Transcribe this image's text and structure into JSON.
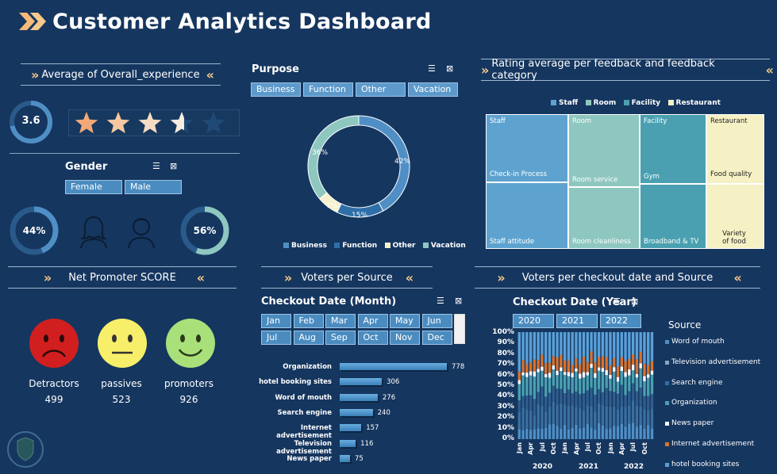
{
  "header": {
    "title": "Customer Analytics Dashboard"
  },
  "rating": {
    "banner": "Average of Overall_experience",
    "value": "3.6",
    "stars_filled_fraction": 0.72
  },
  "gender": {
    "title": "Gender",
    "buttons": [
      "Female",
      "Male"
    ],
    "female_pct": "44%",
    "male_pct": "56%"
  },
  "nps": {
    "banner": "Net Promoter SCORE",
    "faces": [
      {
        "label": "Detractors",
        "value": "499",
        "color": "#d11f1f"
      },
      {
        "label": "passives",
        "value": "523",
        "color": "#f7ef6a"
      },
      {
        "label": "promoters",
        "value": "926",
        "color": "#a9e07a"
      }
    ]
  },
  "purpose": {
    "title": "Purpose",
    "buttons": [
      "Business",
      "Function",
      "Other",
      "Vacation"
    ],
    "labels": [
      "42%",
      "15%",
      "7%",
      "36%"
    ],
    "legend": [
      "Business",
      "Function",
      "Other",
      "Vacation"
    ]
  },
  "voters_source": {
    "banner": "Voters per Source",
    "slicer_title": "Checkout Date (Month)",
    "months": [
      "Jan",
      "Feb",
      "Mar",
      "Apr",
      "May",
      "Jun",
      "Jul",
      "Aug",
      "Sep",
      "Oct",
      "Nov",
      "Dec"
    ]
  },
  "feedback": {
    "banner": "Rating average per feedback and feedback category",
    "legend": [
      "Staff",
      "Room",
      "Facility",
      "Restaurant"
    ],
    "cells": {
      "staff": "Staff",
      "checkin": "Check-in Process",
      "staff_attitude": "Staff attitude",
      "room": "Room",
      "room_service": "Room service",
      "room_clean": "Room cleanliness",
      "facility": "Facility",
      "gym": "Gym",
      "broadband": "Broadband & TV",
      "restaurant": "Restaurant",
      "food_quality": "Food quality",
      "variety": "Variety of food"
    }
  },
  "checkout": {
    "banner": "Voters per checkout date and Source",
    "slicer_title": "Checkout Date (Year)",
    "years": [
      "2020",
      "2021",
      "2022"
    ],
    "y_ticks": [
      "100%",
      "90%",
      "80%",
      "70%",
      "60%",
      "50%",
      "40%",
      "30%",
      "20%",
      "10%",
      "0%"
    ],
    "x_months": [
      "Jan",
      "Apr",
      "Jul",
      "Oct"
    ],
    "source_title": "Source",
    "sources": [
      "Word of mouth",
      "Television advertisement",
      "Search engine",
      "Organization",
      "News paper",
      "Internet advertisement",
      "hotel booking sites"
    ]
  },
  "chart_data": [
    {
      "type": "pie",
      "categories": [
        "Business",
        "Function",
        "Other",
        "Vacation"
      ],
      "values": [
        42,
        15,
        7,
        36
      ],
      "title": "Purpose"
    },
    {
      "type": "bar",
      "categories": [
        "Organization",
        "hotel booking sites",
        "Word of mouth",
        "Search engine",
        "Internet advertisement",
        "Television advertisement",
        "News paper"
      ],
      "values": [
        778,
        306,
        276,
        240,
        157,
        116,
        75
      ],
      "title": "Voters per Source"
    },
    {
      "type": "bar",
      "title": "Voters per checkout date and Source",
      "ylim": [
        0,
        100
      ],
      "x": [
        "2020",
        "2021",
        "2022"
      ]
    }
  ],
  "colors": {
    "background": "#15365f",
    "accent": "#f7c98a",
    "business": "#4f8fc5",
    "function": "#2e6fa8",
    "other": "#f5f1cc",
    "vacation": "#8ec7c0",
    "staff": "#5ea3d0",
    "room": "#8ec7c0",
    "facility": "#4aa0b0",
    "restaurant": "#f5f1c4"
  }
}
